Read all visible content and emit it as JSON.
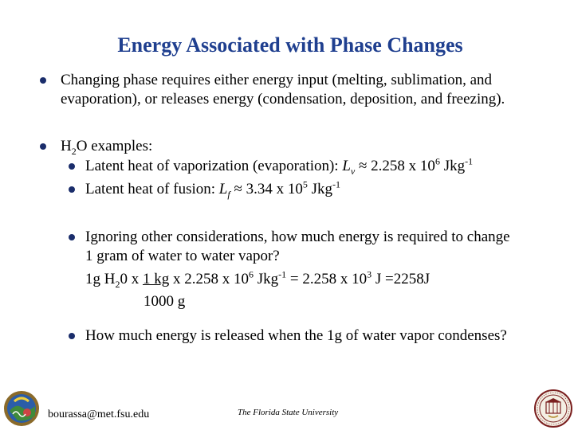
{
  "title": "Energy Associated with Phase Changes",
  "bullet1": {
    "line1": "Changing phase requires either energy input (melting, sublimation, and",
    "line2": "evaporation), or releases energy (condensation, deposition, and freezing)."
  },
  "bullet2": {
    "h": "H",
    "sub2": "2",
    "o_examples": "O examples:"
  },
  "vaporization": {
    "pre": "Latent heat of vaporization (evaporation): ",
    "symbol": "L",
    "sub": "v",
    "approx": " ≈ 2.258 x 10",
    "exp": "6",
    "unit": " Jkg",
    "unit_exp": "-1"
  },
  "fusion": {
    "pre": "Latent heat of fusion: ",
    "symbol": "L",
    "sub": "f",
    "approx": " ≈ 3.34 x 10",
    "exp": "5",
    "unit": " Jkg",
    "unit_exp": "-1"
  },
  "question1": {
    "line1": "Ignoring other considerations, how much energy is required to change",
    "line2": "1 gram of water to water vapor?",
    "calc_a": "1g H",
    "calc_sub": "2",
    "calc_b": "0 x ",
    "frac_num": "1 kg",
    "calc_c": " x 2.258 x 10",
    "calc_exp1": "6",
    "calc_d": " Jkg",
    "calc_exp2": "-1",
    "calc_e": " = 2.258 x 10",
    "calc_exp3": "3",
    "calc_f": " J =2258J",
    "frac_den": "1000 g"
  },
  "question2": "How much energy is released when the 1g of water vapor condenses?",
  "footer": {
    "email": "bourassa@met.fsu.edu",
    "university": "The Florida State University"
  },
  "icons": {
    "left_logo": "met-department-logo",
    "right_logo": "fsu-seal-logo"
  },
  "colors": {
    "title": "#1f3f8f",
    "bullet": "#1a2d6b"
  }
}
